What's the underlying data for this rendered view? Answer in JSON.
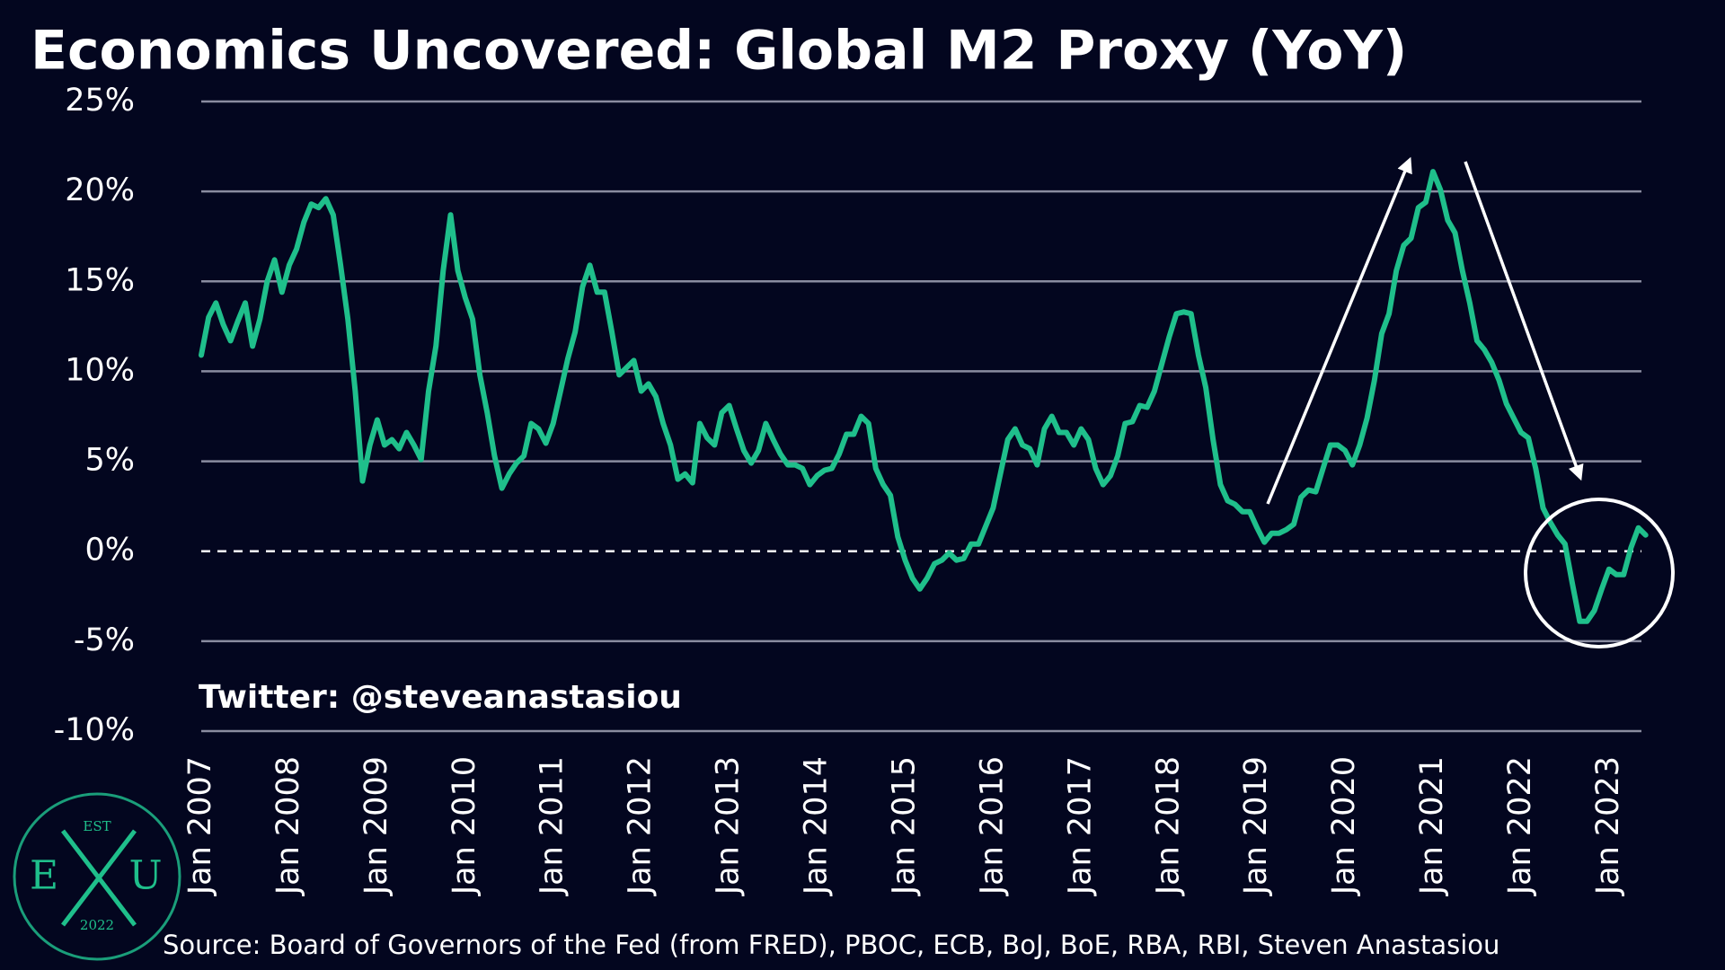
{
  "chart_data": {
    "type": "line",
    "title": "Economics Uncovered: Global M2 Proxy (YoY)",
    "annotation": "Twitter: @steveanastasiou",
    "source": "Source: Board of Governors of the Fed (from FRED), PBOC, ECB, BoJ, BoE, RBA, RBI, Steven Anastasiou",
    "logo": {
      "top": "EST",
      "left": "E",
      "right": "U",
      "bottom": "2022"
    },
    "categories": [
      "Jan 2007",
      null,
      null,
      null,
      null,
      null,
      null,
      null,
      null,
      null,
      null,
      null,
      "Jan 2008",
      null,
      null,
      null,
      null,
      null,
      null,
      null,
      null,
      null,
      null,
      null,
      "Jan 2009",
      null,
      null,
      null,
      null,
      null,
      null,
      null,
      null,
      null,
      null,
      null,
      "Jan 2010",
      null,
      null,
      null,
      null,
      null,
      null,
      null,
      null,
      null,
      null,
      null,
      "Jan 2011",
      null,
      null,
      null,
      null,
      null,
      null,
      null,
      null,
      null,
      null,
      null,
      "Jan 2012",
      null,
      null,
      null,
      null,
      null,
      null,
      null,
      null,
      null,
      null,
      null,
      "Jan 2013",
      null,
      null,
      null,
      null,
      null,
      null,
      null,
      null,
      null,
      null,
      null,
      "Jan 2014",
      null,
      null,
      null,
      null,
      null,
      null,
      null,
      null,
      null,
      null,
      null,
      "Jan 2015",
      null,
      null,
      null,
      null,
      null,
      null,
      null,
      null,
      null,
      null,
      null,
      "Jan 2016",
      null,
      null,
      null,
      null,
      null,
      null,
      null,
      null,
      null,
      null,
      null,
      "Jan 2017",
      null,
      null,
      null,
      null,
      null,
      null,
      null,
      null,
      null,
      null,
      null,
      "Jan 2018",
      null,
      null,
      null,
      null,
      null,
      null,
      null,
      null,
      null,
      null,
      null,
      "Jan 2019",
      null,
      null,
      null,
      null,
      null,
      null,
      null,
      null,
      null,
      null,
      null,
      "Jan 2020",
      null,
      null,
      null,
      null,
      null,
      null,
      null,
      null,
      null,
      null,
      null,
      "Jan 2021",
      null,
      null,
      null,
      null,
      null,
      null,
      null,
      null,
      null,
      null,
      null,
      "Jan 2022",
      null,
      null,
      null,
      null,
      null,
      null,
      null,
      null,
      null,
      null,
      null,
      "Jan 2023",
      null,
      null,
      null,
      null,
      null
    ],
    "series": [
      {
        "color": "#1fbf8b",
        "values": [
          10.9,
          13.0,
          13.8,
          12.6,
          11.7,
          12.8,
          13.8,
          11.4,
          12.9,
          15.0,
          16.2,
          14.4,
          15.9,
          16.8,
          18.3,
          19.3,
          19.1,
          19.6,
          18.7,
          15.9,
          12.9,
          8.9,
          3.9,
          5.9,
          7.3,
          5.9,
          6.2,
          5.7,
          6.6,
          5.9,
          5.1,
          8.9,
          11.4,
          15.6,
          18.7,
          15.6,
          14.1,
          12.9,
          9.8,
          7.7,
          5.3,
          3.5,
          4.3,
          4.9,
          5.3,
          7.1,
          6.8,
          6.0,
          7.1,
          8.9,
          10.7,
          12.2,
          14.7,
          15.9,
          14.4,
          14.4,
          12.2,
          9.8,
          10.2,
          10.6,
          8.9,
          9.3,
          8.6,
          7.1,
          5.9,
          4.0,
          4.3,
          3.8,
          7.1,
          6.3,
          5.9,
          7.7,
          8.1,
          6.8,
          5.6,
          4.9,
          5.6,
          7.1,
          6.2,
          5.4,
          4.8,
          4.8,
          4.6,
          3.7,
          4.2,
          4.5,
          4.6,
          5.4,
          6.5,
          6.5,
          7.5,
          7.1,
          4.6,
          3.7,
          3.1,
          0.8,
          -0.5,
          -1.5,
          -2.1,
          -1.5,
          -0.7,
          -0.5,
          -0.1,
          -0.5,
          -0.4,
          0.4,
          0.4,
          1.4,
          2.4,
          4.3,
          6.2,
          6.8,
          5.9,
          5.7,
          4.8,
          6.8,
          7.5,
          6.6,
          6.6,
          5.9,
          6.8,
          6.2,
          4.6,
          3.7,
          4.2,
          5.3,
          7.1,
          7.2,
          8.1,
          8.0,
          8.9,
          10.4,
          11.9,
          13.2,
          13.3,
          13.2,
          10.9,
          9.1,
          6.2,
          3.7,
          2.8,
          2.6,
          2.2,
          2.2,
          1.3,
          0.5,
          1.0,
          1.0,
          1.2,
          1.5,
          3.0,
          3.4,
          3.3,
          4.6,
          5.9,
          5.9,
          5.6,
          4.8,
          5.9,
          7.4,
          9.5,
          12.1,
          13.2,
          15.6,
          17.0,
          17.4,
          19.1,
          19.4,
          21.1,
          20.1,
          18.4,
          17.7,
          15.6,
          13.8,
          11.7,
          11.2,
          10.5,
          9.5,
          8.2,
          7.4,
          6.6,
          6.3,
          4.6,
          2.4,
          1.6,
          0.9,
          0.4,
          -1.8,
          -3.9,
          -3.9,
          -3.3,
          -2.1,
          -1.0,
          -1.3,
          -1.3,
          0.2,
          1.3,
          0.9
        ]
      }
    ],
    "ylim": [
      -10,
      25
    ],
    "yticks": [
      {
        "value": -10,
        "label": "-10%"
      },
      {
        "value": -5,
        "label": "-5%"
      },
      {
        "value": 0,
        "label": "0%"
      },
      {
        "value": 5,
        "label": "5%"
      },
      {
        "value": 10,
        "label": "10%"
      },
      {
        "value": 15,
        "label": "15%"
      },
      {
        "value": 20,
        "label": "20%"
      },
      {
        "value": 25,
        "label": "25%"
      }
    ],
    "grid": true
  }
}
